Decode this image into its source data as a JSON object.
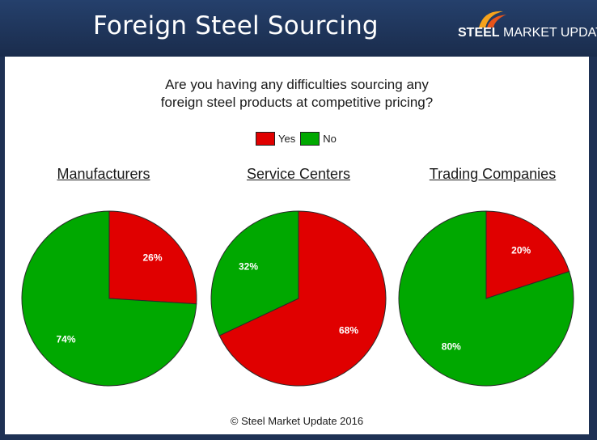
{
  "header": {
    "title": "Foreign Steel Sourcing",
    "logo_brand": "STEEL",
    "logo_rest": "MARKET UPDATE",
    "logo_colors": [
      "#f5a21c",
      "#e8541a"
    ]
  },
  "chart_data": {
    "type": "pie",
    "title": "Are you having any difficulties sourcing any foreign steel products at competitive pricing?",
    "title_lines": [
      "Are you having any difficulties sourcing any",
      "foreign steel products at competitive pricing?"
    ],
    "legend": [
      {
        "name": "Yes",
        "color": "#e00000"
      },
      {
        "name": "No",
        "color": "#00a800"
      }
    ],
    "legend_position": "top-center",
    "charts": [
      {
        "title": "Manufacturers",
        "slices": [
          {
            "name": "Yes",
            "value": 26,
            "label": "26%"
          },
          {
            "name": "No",
            "value": 74,
            "label": "74%"
          }
        ]
      },
      {
        "title": "Service Centers",
        "slices": [
          {
            "name": "Yes",
            "value": 68,
            "label": "68%"
          },
          {
            "name": "No",
            "value": 32,
            "label": "32%"
          }
        ]
      },
      {
        "title": "Trading Companies",
        "slices": [
          {
            "name": "Yes",
            "value": 20,
            "label": "20%"
          },
          {
            "name": "No",
            "value": 80,
            "label": "80%"
          }
        ]
      }
    ]
  },
  "footer": "© Steel Market Update 2016"
}
